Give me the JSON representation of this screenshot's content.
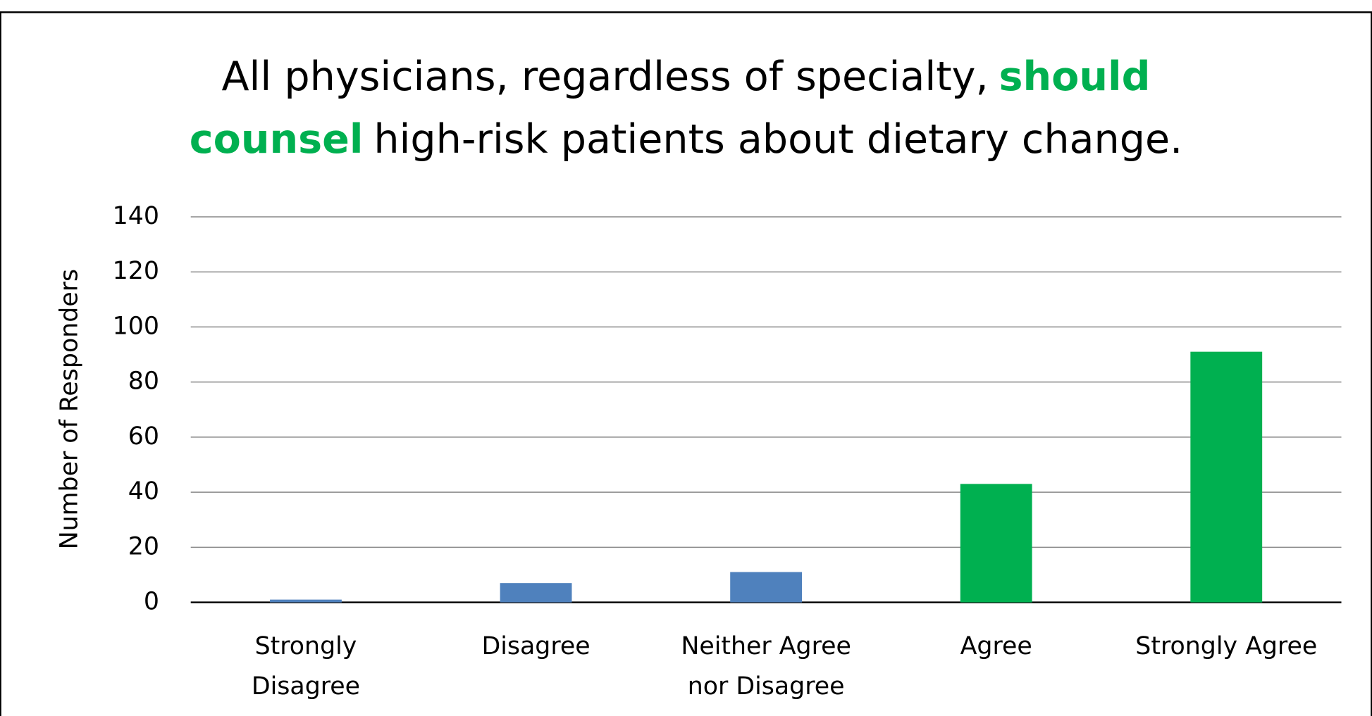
{
  "chart_data": {
    "type": "bar",
    "title_lines": [
      [
        {
          "text": "All physicians, regardless of specialty,"
        },
        {
          "text": "should",
          "highlight": true
        }
      ],
      [
        {
          "text": "counsel",
          "highlight": true
        },
        {
          "text": "high-risk patients about dietary change."
        }
      ]
    ],
    "title_highlight_color": "#00b050",
    "ylabel": "Number of Responders",
    "categories": [
      [
        "Strongly",
        "Disagree"
      ],
      [
        "Disagree"
      ],
      [
        "Neither Agree",
        "nor Disagree"
      ],
      [
        "Agree"
      ],
      [
        "Strongly Agree"
      ]
    ],
    "values": [
      1,
      7,
      11,
      43,
      91
    ],
    "colors": [
      "#4f81bd",
      "#4f81bd",
      "#4f81bd",
      "#00b050",
      "#00b050"
    ],
    "ylim": [
      0,
      140
    ],
    "yticks": [
      0,
      20,
      40,
      60,
      80,
      100,
      120,
      140
    ],
    "grid": true
  }
}
